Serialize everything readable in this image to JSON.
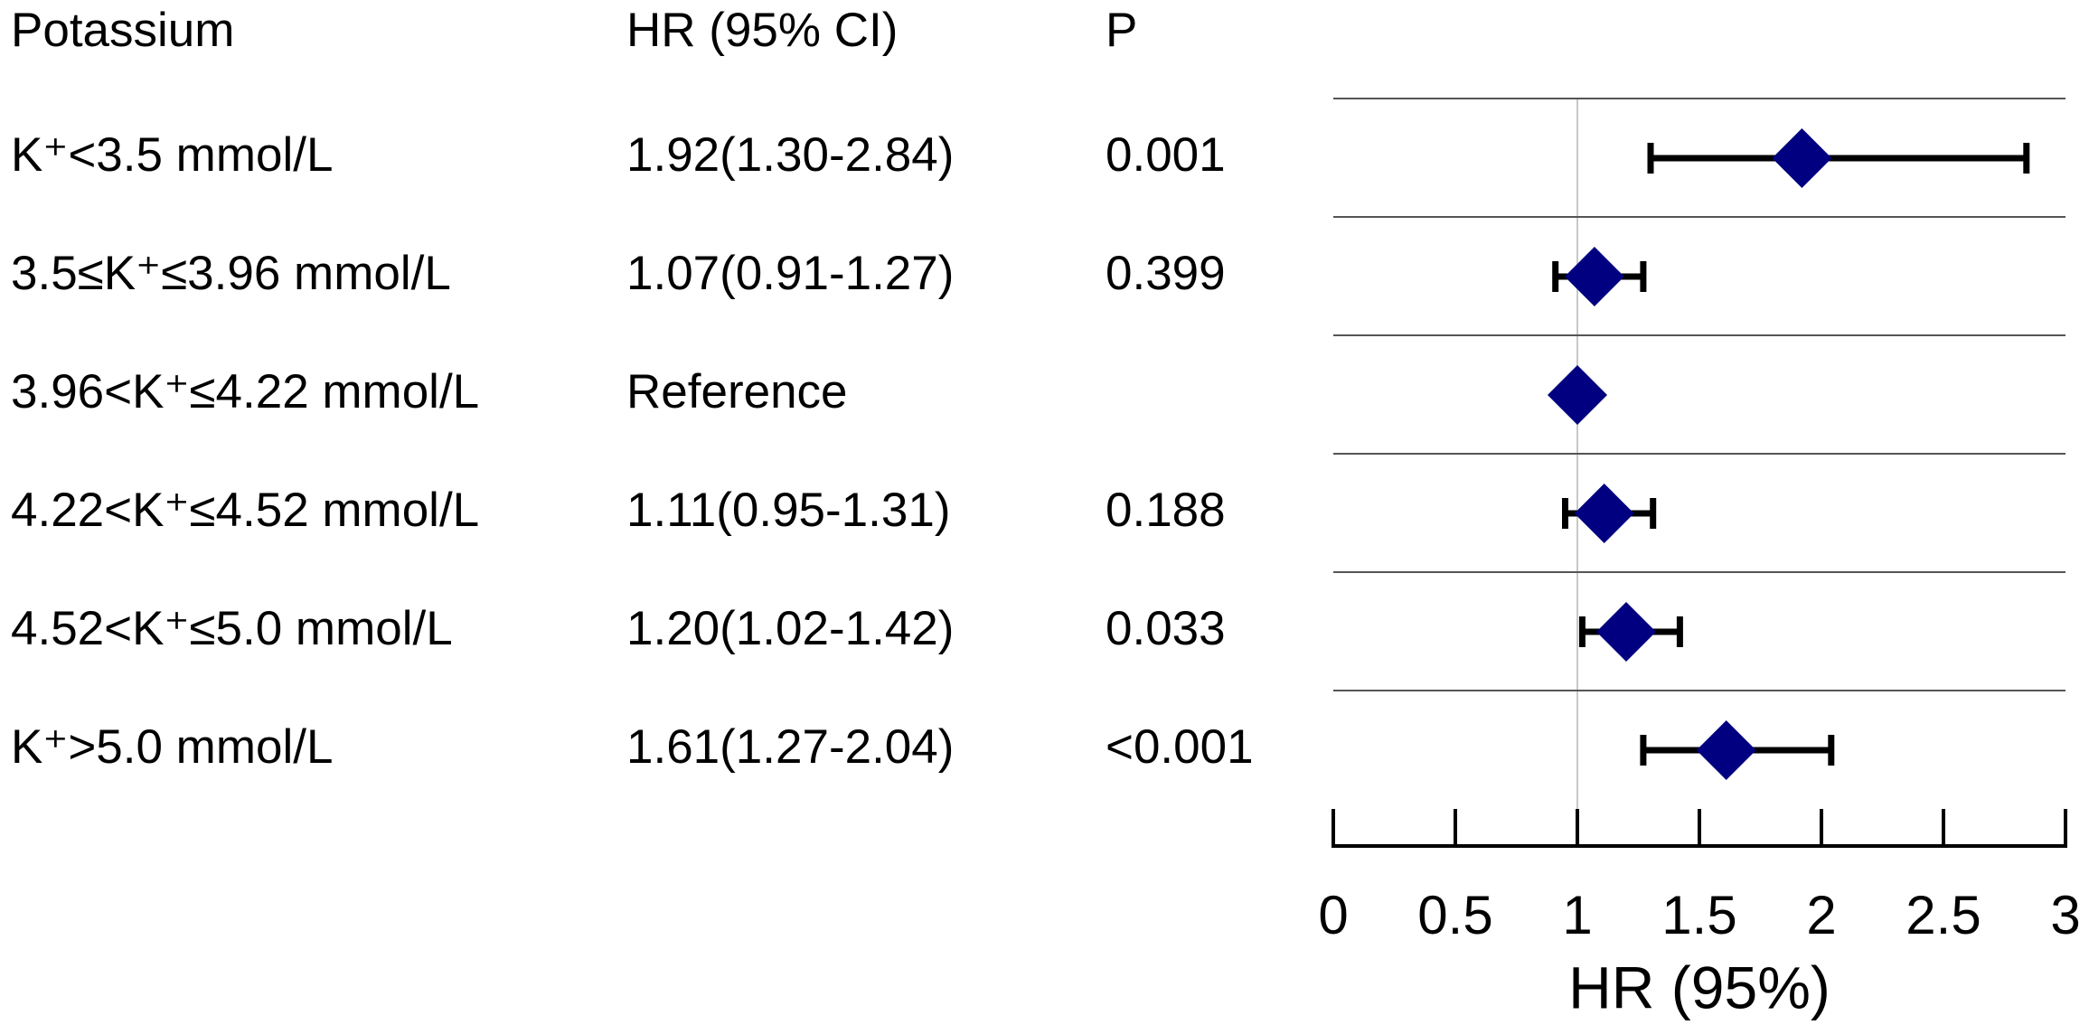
{
  "chart_data": {
    "type": "forest",
    "headers": [
      "Potassium",
      "HR (95% CI)",
      "P"
    ],
    "categories": [
      "K⁺<3.5 mmol/L",
      "3.5≤K⁺≤3.96 mmol/L",
      "3.96<K⁺≤4.22 mmol/L",
      "4.22<K⁺≤4.52 mmol/L",
      "4.52<K⁺≤5.0 mmol/L",
      "K⁺>5.0 mmol/L"
    ],
    "values": [
      1.92,
      1.07,
      1,
      1.11,
      1.2,
      1.61
    ],
    "value_labels": [
      "1.92(1.30-2.84)",
      "1.07(0.91-1.27)",
      "Reference",
      "1.11(0.95-1.31)",
      "1.20(1.02-1.42)",
      "1.61(1.27-2.04)"
    ],
    "lower": [
      1.3,
      0.91,
      null,
      0.95,
      1.02,
      1.27
    ],
    "upper": [
      2.84,
      1.27,
      null,
      1.31,
      1.42,
      2.04
    ],
    "p_values": [
      "0.001",
      "0.399",
      null,
      "0.188",
      "0.033",
      "<0.001"
    ],
    "reference_line": 1,
    "xlim": [
      0,
      3
    ],
    "xticks": [
      0,
      0.5,
      1,
      1.5,
      2,
      2.5,
      3
    ],
    "xlabel": "HR (95%)",
    "color": "#000080"
  }
}
